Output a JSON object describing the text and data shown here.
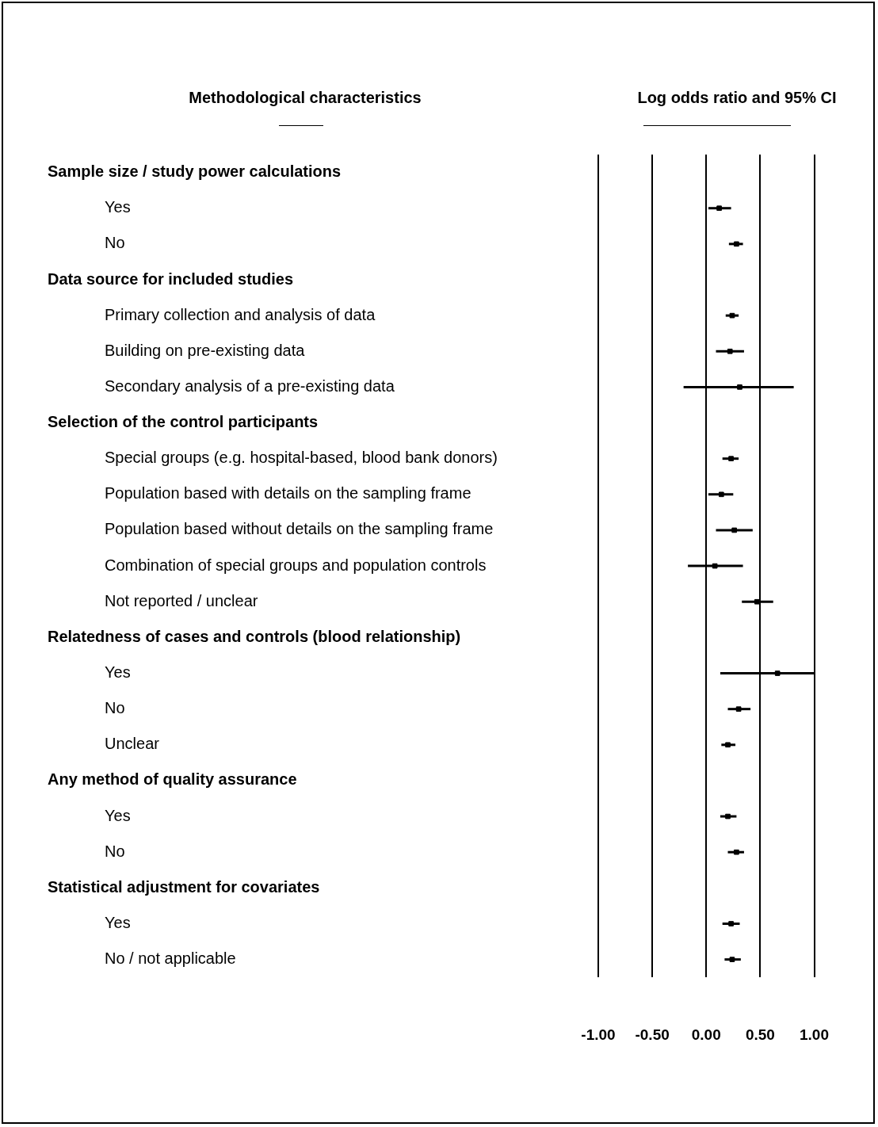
{
  "chart_data": {
    "type": "scatter",
    "orientation": "horizontal",
    "ylabel": "Methodological characteristics",
    "xlabel": "Log odds ratio and 95% CI",
    "categories": [
      null,
      "Yes",
      "No",
      null,
      "Primary collection and analysis of data",
      "Building on pre-existing data",
      "Secondary analysis of a pre-existing data",
      null,
      "Special groups (e.g. hospital-based, blood bank donors)",
      "Population based with details on the sampling frame",
      "Population based without details on the sampling frame",
      "Combination of special groups and population controls",
      "Not reported / unclear",
      null,
      "Yes",
      "No",
      "Unclear",
      null,
      "Yes",
      "No",
      null,
      "Yes",
      "No / not applicable"
    ],
    "annotations": [
      "Sample size / study power calculations",
      "Data source for included studies",
      "Selection of the control participants",
      "Relatedness of cases and controls (blood relationship)",
      "Any method of quality assurance",
      "Statistical adjustment for covariates"
    ],
    "values": [
      null,
      0.12,
      0.28,
      null,
      0.24,
      0.22,
      0.31,
      null,
      0.23,
      0.14,
      0.26,
      0.08,
      0.47,
      null,
      0.66,
      0.3,
      0.2,
      null,
      0.2,
      0.28,
      null,
      0.23,
      0.24
    ],
    "errors": [
      null,
      [
        0.02,
        0.23
      ],
      [
        0.21,
        0.34
      ],
      null,
      [
        0.18,
        0.3
      ],
      [
        0.09,
        0.35
      ],
      [
        -0.21,
        0.81
      ],
      null,
      [
        0.15,
        0.3
      ],
      [
        0.02,
        0.25
      ],
      [
        0.09,
        0.43
      ],
      [
        -0.17,
        0.34
      ],
      [
        0.33,
        0.62
      ],
      null,
      [
        0.13,
        1.0
      ],
      [
        0.2,
        0.41
      ],
      [
        0.14,
        0.27
      ],
      null,
      [
        0.13,
        0.28
      ],
      [
        0.2,
        0.35
      ],
      null,
      [
        0.15,
        0.31
      ],
      [
        0.17,
        0.32
      ]
    ],
    "color": "#000000",
    "marker": "square",
    "grid": "x",
    "tick_labels": "x",
    "xlim": [
      -1,
      1
    ],
    "xticks": [
      {
        "value": -1,
        "label": "-1.00"
      },
      {
        "value": -0.5,
        "label": "-0.50"
      },
      {
        "value": 0,
        "label": "0.00"
      },
      {
        "value": 0.5,
        "label": "0.50"
      },
      {
        "value": 1,
        "label": "1.00"
      }
    ]
  }
}
